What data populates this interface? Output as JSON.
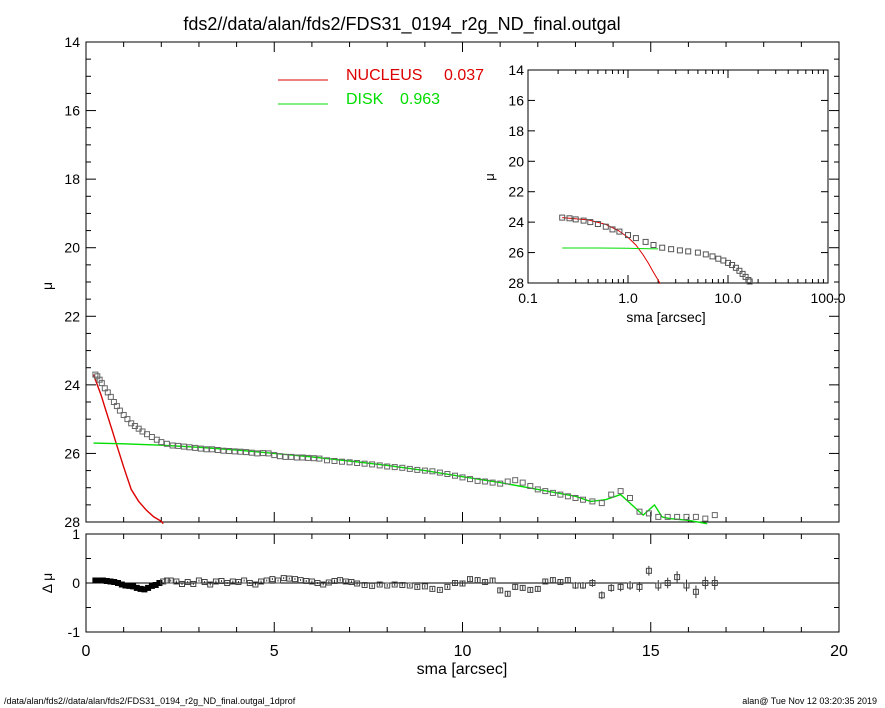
{
  "chart_data": [
    {
      "type": "scatter",
      "title": "fds2//data/alan/fds2/FDS31_0194_r2g_ND_final.outgal",
      "xlabel": "",
      "ylabel": "μ",
      "xlim": [
        0,
        20
      ],
      "ylim": [
        28,
        14
      ],
      "yticks": [
        14,
        16,
        18,
        20,
        22,
        24,
        26,
        28
      ],
      "legend_position": "top-center",
      "legend": [
        {
          "name": "NUCLEUS",
          "value": "0.037",
          "color": "#dd0000"
        },
        {
          "name": "DISK",
          "value": "0.963",
          "color": "#00dd00"
        }
      ],
      "series": [
        {
          "name": "data",
          "style": "open squares with error bars (gray)",
          "x": [
            0.25,
            0.3,
            0.36,
            0.42,
            0.5,
            0.58,
            0.66,
            0.74,
            0.82,
            0.9,
            1.0,
            1.1,
            1.2,
            1.3,
            1.4,
            1.5,
            1.62,
            1.75,
            1.88,
            2.0,
            2.15,
            2.3,
            2.45,
            2.6,
            2.75,
            2.9,
            3.05,
            3.2,
            3.35,
            3.5,
            3.65,
            3.8,
            3.95,
            4.1,
            4.25,
            4.4,
            4.55,
            4.7,
            4.85,
            5.0,
            5.15,
            5.3,
            5.45,
            5.6,
            5.75,
            5.9,
            6.05,
            6.2,
            6.4,
            6.6,
            6.8,
            7.0,
            7.2,
            7.4,
            7.6,
            7.8,
            8.0,
            8.2,
            8.4,
            8.6,
            8.8,
            9.0,
            9.2,
            9.4,
            9.6,
            9.8,
            10.0,
            10.2,
            10.4,
            10.6,
            10.8,
            11.0,
            11.2,
            11.4,
            11.6,
            11.8,
            12.0,
            12.2,
            12.4,
            12.6,
            12.8,
            13.0,
            13.2,
            13.45,
            13.7,
            13.95,
            14.2,
            14.45,
            14.7,
            14.95,
            15.2,
            15.45,
            15.7,
            15.95,
            16.2,
            16.45,
            16.7
          ],
          "y": [
            23.7,
            23.75,
            23.85,
            23.95,
            24.1,
            24.22,
            24.35,
            24.5,
            24.62,
            24.75,
            24.88,
            25.0,
            25.12,
            25.2,
            25.28,
            25.36,
            25.44,
            25.52,
            25.6,
            25.67,
            25.72,
            25.77,
            25.78,
            25.8,
            25.82,
            25.84,
            25.86,
            25.88,
            25.88,
            25.9,
            25.92,
            25.93,
            25.94,
            25.95,
            25.96,
            25.98,
            26.0,
            25.99,
            26.0,
            26.05,
            26.08,
            26.1,
            26.1,
            26.12,
            26.12,
            26.13,
            26.14,
            26.15,
            26.2,
            26.22,
            26.24,
            26.26,
            26.28,
            26.3,
            26.32,
            26.35,
            26.38,
            26.4,
            26.42,
            26.45,
            26.48,
            26.5,
            26.52,
            26.56,
            26.6,
            26.65,
            26.7,
            26.75,
            26.8,
            26.82,
            26.85,
            26.88,
            26.82,
            26.78,
            26.85,
            26.95,
            27.05,
            27.1,
            27.15,
            27.2,
            27.25,
            27.3,
            27.35,
            27.4,
            27.45,
            27.2,
            27.1,
            27.3,
            27.7,
            27.75,
            27.85,
            27.85,
            27.85,
            27.85,
            27.85,
            27.9,
            27.8
          ]
        },
        {
          "name": "NUCLEUS",
          "style": "line",
          "x": [
            0.2,
            0.3,
            0.4,
            0.5,
            0.6,
            0.7,
            0.8,
            0.9,
            1.0,
            1.2,
            1.4,
            1.6,
            1.8,
            2.0,
            2.05
          ],
          "y": [
            23.7,
            24.0,
            24.3,
            24.65,
            25.0,
            25.35,
            25.7,
            26.05,
            26.4,
            27.05,
            27.4,
            27.65,
            27.85,
            27.98,
            28.05
          ]
        },
        {
          "name": "DISK",
          "style": "line",
          "x": [
            0.2,
            1.0,
            2.0,
            3.0,
            4.0,
            5.0,
            6.0,
            7.0,
            8.0,
            9.0,
            10.0,
            11.0,
            12.0,
            13.0,
            13.4,
            13.8,
            14.2,
            14.5,
            14.8,
            15.1,
            15.3,
            15.5,
            16.0,
            16.5
          ],
          "y": [
            25.7,
            25.72,
            25.76,
            25.82,
            25.9,
            26.0,
            26.1,
            26.22,
            26.35,
            26.5,
            26.68,
            26.85,
            27.05,
            27.25,
            27.4,
            27.35,
            27.2,
            27.5,
            27.8,
            27.5,
            27.85,
            27.9,
            27.95,
            28.05
          ]
        }
      ]
    },
    {
      "type": "scatter",
      "title": "",
      "xlabel": "sma [arcsec]",
      "ylabel": "μ",
      "xscale": "log",
      "xlim": [
        0.1,
        100.0
      ],
      "xticks": [
        "0.1",
        "1.0",
        "10.0",
        "100.0"
      ],
      "ylim": [
        28,
        14
      ],
      "yticks": [
        14,
        16,
        18,
        20,
        22,
        24,
        26,
        28
      ],
      "series": [
        {
          "name": "data",
          "style": "open squares (gray)",
          "x": [
            0.22,
            0.26,
            0.3,
            0.36,
            0.42,
            0.5,
            0.6,
            0.7,
            0.82,
            1.0,
            1.2,
            1.5,
            1.8,
            2.2,
            2.7,
            3.3,
            4.0,
            5.0,
            6.0,
            7.0,
            8.0,
            9.0,
            10.0,
            11.0,
            12.0,
            13.0,
            14.0,
            15.0,
            16.0,
            16.5
          ],
          "y": [
            23.7,
            23.75,
            23.82,
            23.9,
            24.0,
            24.12,
            24.3,
            24.48,
            24.62,
            24.85,
            25.05,
            25.3,
            25.5,
            25.68,
            25.78,
            25.86,
            25.92,
            26.0,
            26.12,
            26.25,
            26.4,
            26.52,
            26.68,
            26.82,
            27.0,
            27.2,
            27.4,
            27.6,
            27.8,
            27.9
          ]
        },
        {
          "name": "NUCLEUS",
          "style": "line",
          "x": [
            0.22,
            0.4,
            0.6,
            0.8,
            1.0,
            1.2,
            1.4,
            1.6,
            1.8,
            2.0,
            2.1
          ],
          "y": [
            23.7,
            23.85,
            24.15,
            24.55,
            25.0,
            25.5,
            26.1,
            26.7,
            27.3,
            27.8,
            28.1
          ]
        },
        {
          "name": "DISK",
          "style": "line",
          "x": [
            0.22,
            0.5,
            1.0,
            2.0
          ],
          "y": [
            25.7,
            25.7,
            25.72,
            25.76
          ]
        }
      ]
    },
    {
      "type": "scatter",
      "title": "",
      "xlabel": "sma [arcsec]",
      "ylabel": "Δ μ",
      "xlim": [
        0,
        20
      ],
      "ylim": [
        -1,
        1
      ],
      "xticks": [
        0,
        5,
        10,
        15,
        20
      ],
      "yticks": [
        -1,
        0,
        1
      ],
      "series": [
        {
          "name": "residual",
          "style": "open squares with error bars",
          "x": [
            0.25,
            0.35,
            0.45,
            0.55,
            0.65,
            0.75,
            0.85,
            0.95,
            1.05,
            1.15,
            1.25,
            1.35,
            1.45,
            1.55,
            1.65,
            1.75,
            1.85,
            1.95,
            2.05,
            2.15,
            2.25,
            2.4,
            2.55,
            2.7,
            2.85,
            3.0,
            3.15,
            3.3,
            3.45,
            3.6,
            3.75,
            3.9,
            4.05,
            4.2,
            4.35,
            4.5,
            4.65,
            4.8,
            4.95,
            5.1,
            5.25,
            5.4,
            5.55,
            5.7,
            5.85,
            6.0,
            6.15,
            6.3,
            6.45,
            6.6,
            6.75,
            6.9,
            7.05,
            7.2,
            7.4,
            7.6,
            7.8,
            8.0,
            8.2,
            8.4,
            8.6,
            8.8,
            9.0,
            9.2,
            9.4,
            9.6,
            9.8,
            10.0,
            10.2,
            10.4,
            10.6,
            10.8,
            11.0,
            11.2,
            11.4,
            11.6,
            11.8,
            12.0,
            12.2,
            12.4,
            12.6,
            12.8,
            13.0,
            13.2,
            13.45,
            13.7,
            13.95,
            14.2,
            14.45,
            14.7,
            14.95,
            15.2,
            15.45,
            15.7,
            15.95,
            16.2,
            16.45,
            16.7
          ],
          "y": [
            0.05,
            0.05,
            0.05,
            0.04,
            0.03,
            0.02,
            0.0,
            -0.03,
            -0.05,
            -0.06,
            -0.07,
            -0.1,
            -0.12,
            -0.13,
            -0.1,
            -0.06,
            -0.04,
            0.0,
            0.03,
            0.05,
            0.05,
            0.03,
            -0.02,
            0.02,
            -0.02,
            0.05,
            0.02,
            -0.03,
            0.03,
            0.04,
            0.0,
            0.03,
            0.02,
            0.05,
            0.0,
            -0.03,
            0.03,
            0.05,
            0.08,
            0.05,
            0.1,
            0.09,
            0.08,
            0.06,
            0.04,
            0.03,
            0.0,
            -0.03,
            0.01,
            0.04,
            0.06,
            0.03,
            0.02,
            -0.01,
            -0.04,
            -0.06,
            -0.03,
            -0.05,
            -0.03,
            -0.04,
            -0.05,
            -0.08,
            -0.07,
            -0.12,
            -0.14,
            -0.08,
            0.0,
            -0.01,
            0.08,
            0.06,
            0.02,
            0.05,
            -0.15,
            -0.22,
            -0.08,
            -0.1,
            -0.14,
            -0.12,
            0.03,
            0.06,
            0.02,
            0.06,
            -0.05,
            -0.05,
            0.0,
            -0.25,
            -0.1,
            -0.08,
            -0.05,
            -0.08,
            0.25,
            -0.05,
            0.0,
            0.12,
            -0.05,
            -0.18,
            0.0,
            0.0
          ],
          "err": [
            0.01,
            0.01,
            0.01,
            0.01,
            0.01,
            0.01,
            0.01,
            0.01,
            0.01,
            0.01,
            0.01,
            0.01,
            0.01,
            0.01,
            0.01,
            0.01,
            0.01,
            0.01,
            0.01,
            0.01,
            0.02,
            0.02,
            0.02,
            0.02,
            0.02,
            0.02,
            0.02,
            0.02,
            0.02,
            0.02,
            0.02,
            0.02,
            0.02,
            0.02,
            0.02,
            0.02,
            0.02,
            0.02,
            0.02,
            0.02,
            0.02,
            0.02,
            0.02,
            0.02,
            0.02,
            0.02,
            0.02,
            0.02,
            0.03,
            0.03,
            0.03,
            0.03,
            0.03,
            0.03,
            0.03,
            0.03,
            0.03,
            0.03,
            0.03,
            0.03,
            0.03,
            0.03,
            0.03,
            0.03,
            0.03,
            0.03,
            0.04,
            0.04,
            0.04,
            0.04,
            0.04,
            0.05,
            0.05,
            0.05,
            0.05,
            0.05,
            0.05,
            0.05,
            0.06,
            0.06,
            0.06,
            0.06,
            0.07,
            0.07,
            0.08,
            0.08,
            0.08,
            0.09,
            0.09,
            0.1,
            0.1,
            0.11,
            0.11,
            0.12,
            0.12,
            0.13,
            0.13,
            0.14
          ]
        }
      ]
    }
  ],
  "footer": {
    "left": "/data/alan/fds2//data/alan/fds2/FDS31_0194_r2g_ND_final.outgal_1dprof",
    "right": "alan@  Tue Nov 12 03:20:35 2019"
  }
}
